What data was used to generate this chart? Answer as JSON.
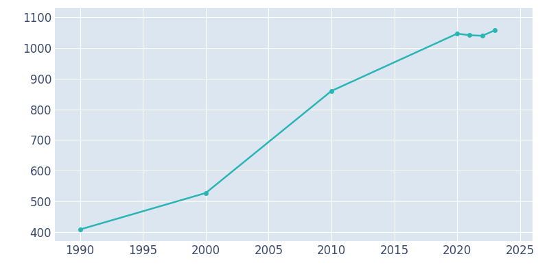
{
  "years": [
    1990,
    2000,
    2010,
    2020,
    2021,
    2022,
    2023
  ],
  "population": [
    408,
    527,
    860,
    1047,
    1042,
    1040,
    1058
  ],
  "line_color": "#2ab5b5",
  "marker": "o",
  "marker_size": 4,
  "line_width": 1.8,
  "plot_bg_color": "#dce6f0",
  "fig_bg_color": "#ffffff",
  "grid_color": "#ffffff",
  "xlim": [
    1988,
    2026
  ],
  "ylim": [
    370,
    1130
  ],
  "xticks": [
    1990,
    1995,
    2000,
    2005,
    2010,
    2015,
    2020,
    2025
  ],
  "yticks": [
    400,
    500,
    600,
    700,
    800,
    900,
    1000,
    1100
  ],
  "tick_color": "#3a4a6b",
  "tick_fontsize": 12,
  "grid_linewidth": 0.8
}
